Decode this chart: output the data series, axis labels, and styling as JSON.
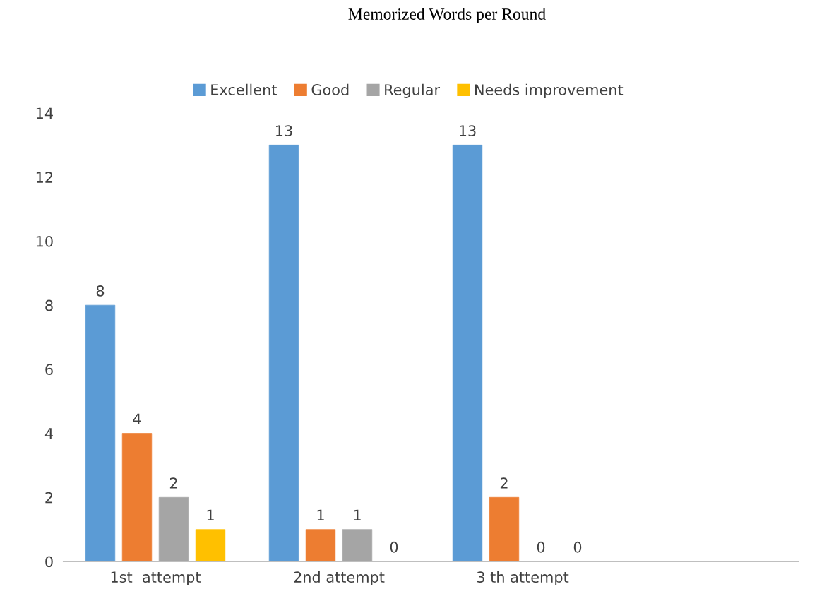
{
  "chart_data": {
    "type": "bar",
    "title": "Memorized Words per Round",
    "categories": [
      "1st  attempt",
      "2nd attempt",
      "3 th attempt",
      null
    ],
    "series": [
      {
        "name": "Excellent",
        "color": "#5b9bd5",
        "values": [
          8,
          13,
          13,
          null
        ]
      },
      {
        "name": "Good",
        "color": "#ed7d31",
        "values": [
          4,
          1,
          2,
          null
        ]
      },
      {
        "name": "Regular",
        "color": "#a5a5a5",
        "values": [
          2,
          1,
          0,
          null
        ]
      },
      {
        "name": "Needs improvement",
        "color": "#ffc000",
        "values": [
          1,
          0,
          0,
          null
        ]
      }
    ],
    "ylim": [
      0,
      14
    ],
    "yticks": [
      0,
      2,
      4,
      6,
      8,
      10,
      12,
      14
    ],
    "grid": false,
    "legend": "top",
    "data_labels": true
  }
}
